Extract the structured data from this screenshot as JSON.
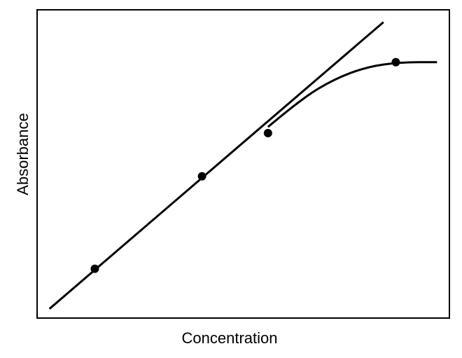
{
  "chart_data": {
    "type": "scatter",
    "title": "",
    "xlabel": "Concentration",
    "ylabel": "Absorbance",
    "xlim": [
      0,
      100
    ],
    "ylim": [
      0,
      100
    ],
    "ticks": "none",
    "grid": false,
    "legend": "none",
    "points": [
      {
        "x": 14,
        "y": 16
      },
      {
        "x": 40,
        "y": 46
      },
      {
        "x": 56,
        "y": 60
      },
      {
        "x": 87,
        "y": 83
      }
    ],
    "linear_fit": {
      "x": [
        3,
        84
      ],
      "y": [
        3,
        96
      ]
    },
    "observed_curve": [
      {
        "x": 56,
        "y": 62
      },
      {
        "x": 64,
        "y": 71
      },
      {
        "x": 72,
        "y": 77.5
      },
      {
        "x": 80,
        "y": 81.5
      },
      {
        "x": 88,
        "y": 83
      },
      {
        "x": 97,
        "y": 83
      }
    ],
    "colors": {
      "line": "#000000",
      "marker": "#000000",
      "frame": "#000000"
    }
  }
}
